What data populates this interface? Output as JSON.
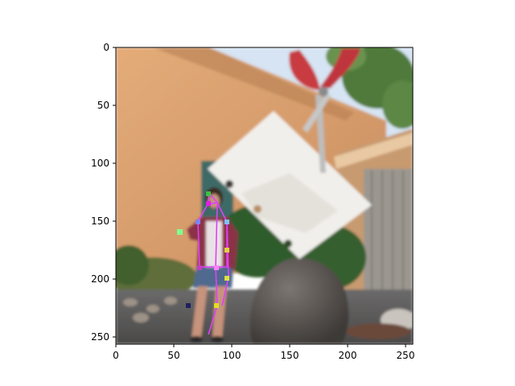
{
  "figure": {
    "x_ticks": [
      "0",
      "50",
      "100",
      "150",
      "200",
      "250"
    ],
    "y_ticks": [
      "0",
      "50",
      "100",
      "150",
      "200",
      "250"
    ],
    "x_range": [
      0,
      256
    ],
    "y_range": [
      0,
      256
    ],
    "y_inverted": true
  },
  "photo": {
    "subjects": [
      "woman-standing",
      "large-rock",
      "white-paper-sheet",
      "red-scissors-sculpture",
      "adobe-wall",
      "wooden-door",
      "tree",
      "shrubs",
      "sky"
    ]
  },
  "pose_overlay": {
    "color": "#e040fb"
  },
  "colors": {
    "wall": "#d9a06e",
    "sky": "#cfe0f4",
    "rock": "#5a5450",
    "paper": "#f2f0ec",
    "scissors": "#c83a40",
    "foliage": "#3f6b35"
  }
}
